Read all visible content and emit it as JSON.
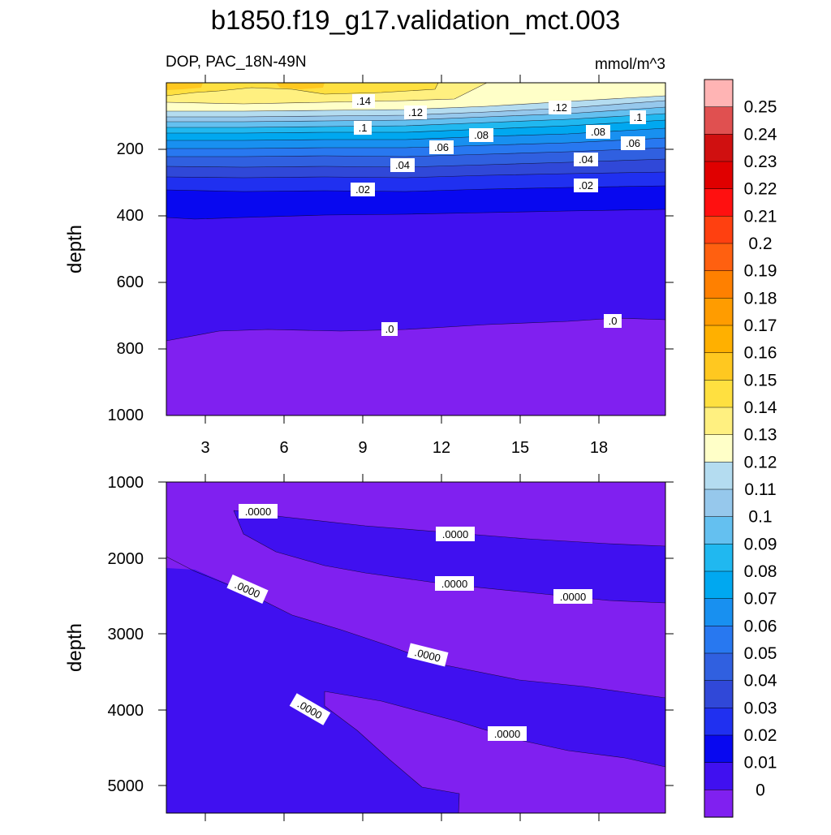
{
  "title": "b1850.f19_g17.validation_mct.003",
  "top_panel": {
    "left_label": "DOP, PAC_18N-49N",
    "right_label": "mmol/m^3",
    "ylabel": "depth",
    "yticks": [
      "200",
      "400",
      "600",
      "800",
      "1000"
    ],
    "xticks": [
      "3",
      "6",
      "9",
      "12",
      "15",
      "18"
    ],
    "contour_labels": [
      ".14",
      ".12",
      ".12",
      ".1",
      ".1",
      ".08",
      ".08",
      ".06",
      ".06",
      ".04",
      ".04",
      ".02",
      ".02",
      ".0",
      ".0"
    ]
  },
  "bottom_panel": {
    "ylabel": "depth",
    "yticks": [
      "1000",
      "2000",
      "3000",
      "4000",
      "5000"
    ],
    "contour_labels": [
      ".0000",
      ".0000",
      ".0000",
      ".0000",
      ".0000",
      ".0000",
      ".0000",
      ".0000"
    ]
  },
  "colorbar": {
    "labels": [
      "0.25",
      "0.24",
      "0.23",
      "0.22",
      "0.21",
      "0.2",
      "0.19",
      "0.18",
      "0.17",
      "0.16",
      "0.15",
      "0.14",
      "0.13",
      "0.12",
      "0.11",
      "0.1",
      "0.09",
      "0.08",
      "0.07",
      "0.06",
      "0.05",
      "0.04",
      "0.03",
      "0.02",
      "0.01",
      "0"
    ],
    "colors": [
      "#ffb4b4",
      "#e05050",
      "#d01010",
      "#e00000",
      "#ff1010",
      "#ff4010",
      "#ff6010",
      "#ff8000",
      "#ff9c00",
      "#ffb000",
      "#ffc820",
      "#ffe040",
      "#fff080",
      "#ffffc8",
      "#b4dcf0",
      "#96c8ec",
      "#64c0f0",
      "#20b8f0",
      "#00a8f0",
      "#1890f0",
      "#2878f0",
      "#3060e0",
      "#3048d8",
      "#2030f0",
      "#0808f0",
      "#4010f0",
      "#8020f0"
    ]
  },
  "chart_data": {
    "type": "contour",
    "title": "b1850.f19_g17.validation_mct.003",
    "variable": "DOP",
    "region": "PAC_18N-49N",
    "units": "mmol/m^3",
    "x": [
      3,
      6,
      9,
      12,
      15,
      18
    ],
    "xlim": [
      1.5,
      20.5
    ],
    "panels": [
      {
        "name": "upper",
        "ylabel": "depth",
        "ylim": [
          0,
          1000
        ],
        "yticks": [
          200,
          400,
          600,
          800,
          1000
        ],
        "levels": [
          0,
          0.01,
          0.02,
          0.03,
          0.04,
          0.05,
          0.06,
          0.07,
          0.08,
          0.09,
          0.1,
          0.11,
          0.12,
          0.13,
          0.14,
          0.15
        ]
      },
      {
        "name": "lower",
        "ylabel": "depth",
        "ylim": [
          1000,
          5400
        ],
        "yticks": [
          1000,
          2000,
          3000,
          4000,
          5000
        ],
        "levels": [
          0,
          0.0
        ]
      }
    ],
    "colorbar_levels": [
      0,
      0.01,
      0.02,
      0.03,
      0.04,
      0.05,
      0.06,
      0.07,
      0.08,
      0.09,
      0.1,
      0.11,
      0.12,
      0.13,
      0.14,
      0.15,
      0.16,
      0.17,
      0.18,
      0.19,
      0.2,
      0.21,
      0.22,
      0.23,
      0.24,
      0.25
    ]
  }
}
